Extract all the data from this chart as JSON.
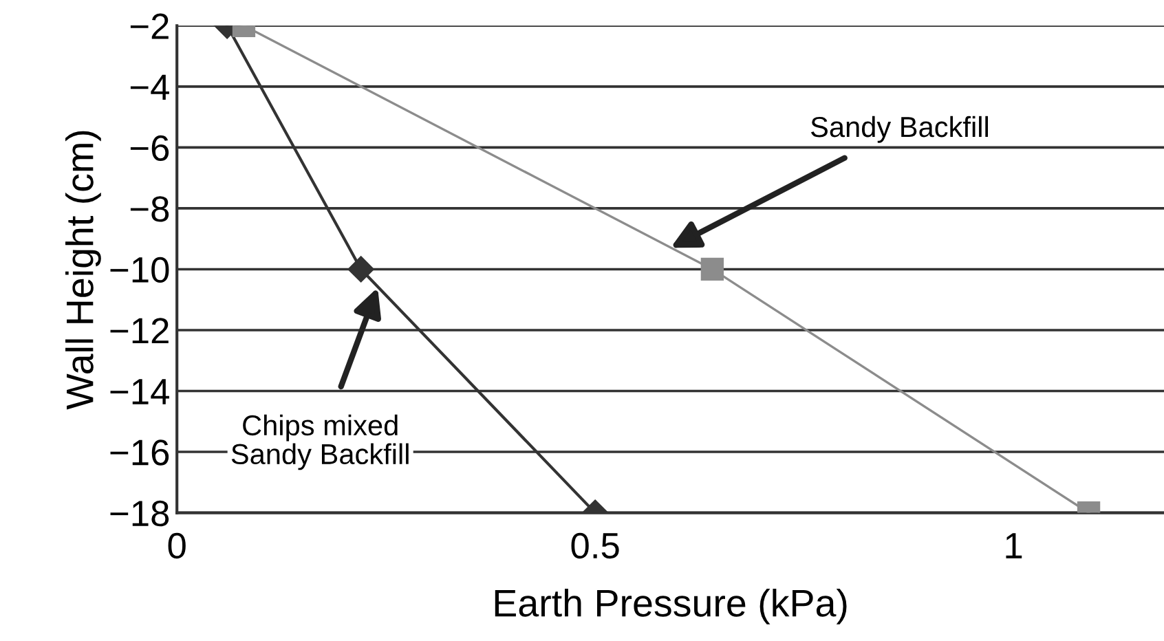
{
  "chart_data": {
    "type": "line",
    "xlabel": "Earth Pressure (kPa)",
    "ylabel": "Wall Height (cm)",
    "xlim": [
      0,
      1.18
    ],
    "xticks": [
      0,
      0.5,
      1
    ],
    "ylim": [
      -18,
      -2
    ],
    "yticks": [
      -2,
      -4,
      -6,
      -8,
      -10,
      -12,
      -14,
      -16,
      -18
    ],
    "grid": "y",
    "legend": false,
    "series": [
      {
        "color": "#333333",
        "marker": "diamond",
        "x": [
          0.06,
          0.22,
          0.5
        ],
        "values": [
          -2,
          -10,
          -18
        ]
      },
      {
        "color": "#8c8c8c",
        "marker": "square",
        "x": [
          0.08,
          0.64,
          1.09
        ],
        "values": [
          -2,
          -10,
          -18
        ]
      }
    ],
    "annotations": [
      {
        "text": "Chips mixed\nSandy Backfill",
        "x": 0.24,
        "y": -10.6
      },
      {
        "text": "Sandy Backfill",
        "x": 0.59,
        "y": -9.3
      }
    ]
  }
}
